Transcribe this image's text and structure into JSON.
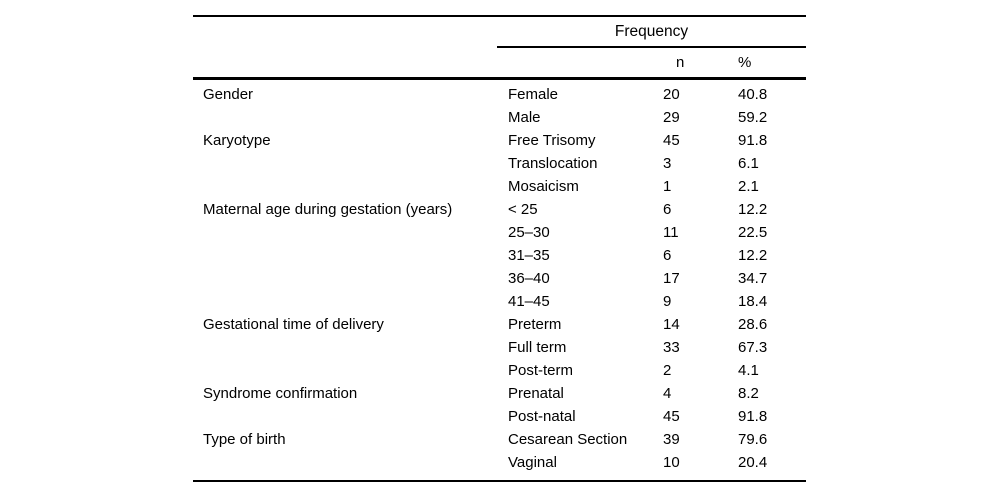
{
  "table": {
    "spanner_header": "Frequency",
    "column_headers": {
      "n": "n",
      "pct": "%"
    },
    "rows": [
      {
        "category": "Gender",
        "subcategory": "Female",
        "n": "20",
        "pct": "40.8"
      },
      {
        "category": "",
        "subcategory": "Male",
        "n": "29",
        "pct": "59.2"
      },
      {
        "category": "Karyotype",
        "subcategory": "Free Trisomy",
        "n": "45",
        "pct": "91.8"
      },
      {
        "category": "",
        "subcategory": "Translocation",
        "n": "3",
        "pct": "6.1"
      },
      {
        "category": "",
        "subcategory": "Mosaicism",
        "n": "1",
        "pct": "2.1"
      },
      {
        "category": "Maternal age during gestation (years)",
        "subcategory": "< 25",
        "n": "6",
        "pct": "12.2"
      },
      {
        "category": "",
        "subcategory": "25–30",
        "n": "11",
        "pct": "22.5"
      },
      {
        "category": "",
        "subcategory": "31–35",
        "n": "6",
        "pct": "12.2"
      },
      {
        "category": "",
        "subcategory": "36–40",
        "n": "17",
        "pct": "34.7"
      },
      {
        "category": "",
        "subcategory": "41–45",
        "n": "9",
        "pct": "18.4"
      },
      {
        "category": "Gestational time of delivery",
        "subcategory": "Preterm",
        "n": "14",
        "pct": "28.6"
      },
      {
        "category": "",
        "subcategory": "Full term",
        "n": "33",
        "pct": "67.3"
      },
      {
        "category": "",
        "subcategory": "Post-term",
        "n": "2",
        "pct": "4.1"
      },
      {
        "category": "Syndrome confirmation",
        "subcategory": "Prenatal",
        "n": "4",
        "pct": "8.2"
      },
      {
        "category": "",
        "subcategory": "Post-natal",
        "n": "45",
        "pct": "91.8"
      },
      {
        "category": "Type of birth",
        "subcategory": "Cesarean Section",
        "n": "39",
        "pct": "79.6"
      },
      {
        "category": "",
        "subcategory": "Vaginal",
        "n": "10",
        "pct": "20.4"
      }
    ]
  }
}
